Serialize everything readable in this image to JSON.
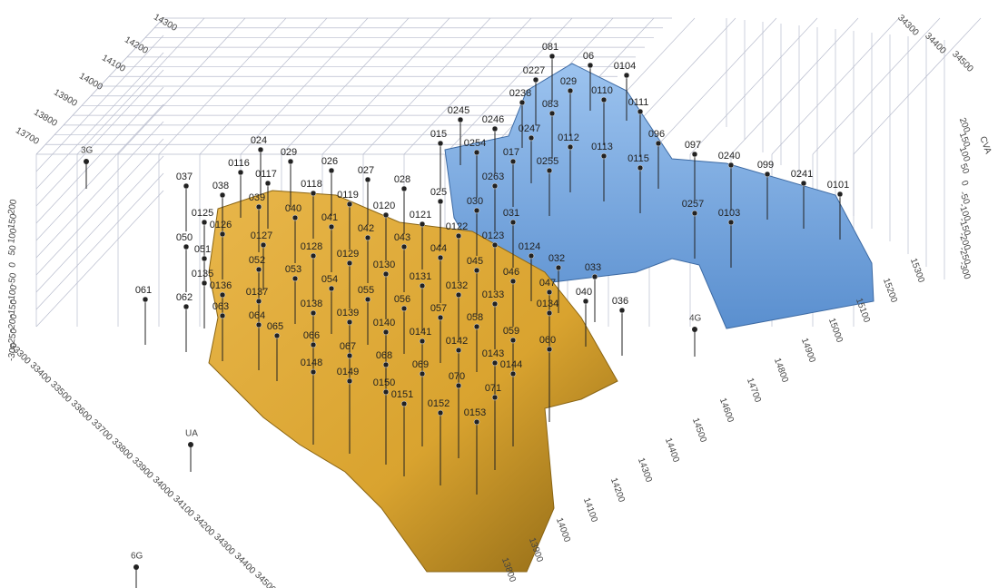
{
  "axes": {
    "north_axis": [
      "13700",
      "13800",
      "13900",
      "14000",
      "14100",
      "14200",
      "14300"
    ],
    "east_top_axis": [
      "34300",
      "34400",
      "34500"
    ],
    "depth_right": [
      "200",
      "150",
      "100",
      "50",
      "0",
      "-50",
      "-100",
      "-150",
      "-200",
      "-250",
      "-300"
    ],
    "depth_right_title": "CVA",
    "depth_left": [
      "200",
      "150",
      "100",
      "50",
      "0",
      "-50",
      "-100",
      "-150",
      "-200",
      "-250",
      "-300"
    ],
    "east_axis": [
      "33300",
      "33400",
      "33500",
      "33600",
      "33700",
      "33800",
      "33900",
      "34000",
      "34100",
      "34200",
      "34300",
      "34400",
      "34500"
    ],
    "north_bottom_axis": [
      "13800",
      "13900",
      "14000",
      "14100",
      "14200",
      "14300",
      "14400",
      "14500",
      "14600",
      "14700",
      "14800",
      "14900",
      "15000",
      "15100",
      "15200",
      "15300"
    ]
  },
  "zone_labels": [
    "3G",
    "6G",
    "UA",
    "4G"
  ],
  "wells": [
    "081",
    "06",
    "0104",
    "0227",
    "029",
    "0110",
    "0238",
    "083",
    "0111",
    "0245",
    "0246",
    "0247",
    "0112",
    "096",
    "015",
    "0254",
    "017",
    "0113",
    "0115",
    "097",
    "0240",
    "099",
    "0241",
    "0101",
    "0255",
    "0263",
    "0257",
    "0103",
    "024",
    "0116",
    "029",
    "026",
    "027",
    "028",
    "037",
    "038",
    "0117",
    "0118",
    "0119",
    "0120",
    "0121",
    "025",
    "030",
    "0125",
    "039",
    "040",
    "041",
    "0122",
    "031",
    "0126",
    "0127",
    "042",
    "043",
    "044",
    "0123",
    "0124",
    "050",
    "051",
    "052",
    "0128",
    "0129",
    "0130",
    "045",
    "032",
    "0135",
    "053",
    "054",
    "0131",
    "0132",
    "046",
    "033",
    "047",
    "061",
    "062",
    "0136",
    "0137",
    "055",
    "056",
    "0133",
    "040",
    "036",
    "0134",
    "063",
    "064",
    "0138",
    "0139",
    "0140",
    "057",
    "058",
    "065",
    "066",
    "0141",
    "059",
    "060",
    "0148",
    "067",
    "068",
    "0142",
    "0143",
    "0144",
    "0149",
    "069",
    "0150",
    "070",
    "071",
    "0151",
    "0152",
    "0153"
  ]
}
